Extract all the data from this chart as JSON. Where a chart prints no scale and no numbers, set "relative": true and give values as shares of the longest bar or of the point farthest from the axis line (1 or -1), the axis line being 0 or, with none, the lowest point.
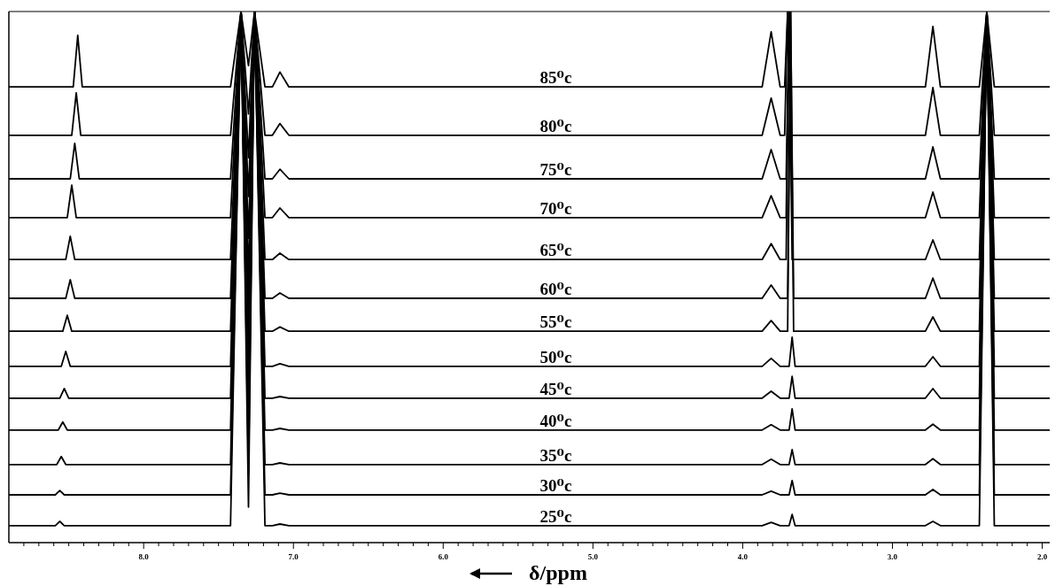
{
  "chart_data": {
    "type": "line",
    "relative": true,
    "xlabel": "δ/ppm",
    "line_style": "solid",
    "xlim": [
      8.9,
      1.95
    ],
    "xticks": [
      {
        "value": 8,
        "label": "8.0"
      },
      {
        "value": 7,
        "label": "7.0"
      },
      {
        "value": 6,
        "label": "6.0"
      },
      {
        "value": 5,
        "label": "5.0"
      },
      {
        "value": 4,
        "label": "4.0"
      },
      {
        "value": 3,
        "label": "3.0"
      },
      {
        "value": 2,
        "label": "2.0"
      },
      {
        "value": 8.8,
        "label": null
      },
      {
        "value": 8.7,
        "label": null
      },
      {
        "value": 8.6,
        "label": null
      },
      {
        "value": 8.5,
        "label": null
      },
      {
        "value": 8.4,
        "label": null
      },
      {
        "value": 8.3,
        "label": null
      },
      {
        "value": 8.2,
        "label": null
      },
      {
        "value": 8.1,
        "label": null
      },
      {
        "value": 7.9,
        "label": null
      },
      {
        "value": 7.8,
        "label": null
      },
      {
        "value": 7.7,
        "label": null
      },
      {
        "value": 7.6,
        "label": null
      },
      {
        "value": 7.5,
        "label": null
      },
      {
        "value": 7.4,
        "label": null
      },
      {
        "value": 7.3,
        "label": null
      },
      {
        "value": 7.2,
        "label": null
      },
      {
        "value": 7.1,
        "label": null
      },
      {
        "value": 6.9,
        "label": null
      },
      {
        "value": 6.8,
        "label": null
      },
      {
        "value": 6.7,
        "label": null
      },
      {
        "value": 6.6,
        "label": null
      },
      {
        "value": 6.5,
        "label": null
      },
      {
        "value": 6.4,
        "label": null
      },
      {
        "value": 6.3,
        "label": null
      },
      {
        "value": 6.2,
        "label": null
      },
      {
        "value": 6.1,
        "label": null
      },
      {
        "value": 5.9,
        "label": null
      },
      {
        "value": 5.8,
        "label": null
      },
      {
        "value": 5.7,
        "label": null
      },
      {
        "value": 5.6,
        "label": null
      },
      {
        "value": 5.5,
        "label": null
      },
      {
        "value": 5.4,
        "label": null
      },
      {
        "value": 5.3,
        "label": null
      },
      {
        "value": 5.2,
        "label": null
      },
      {
        "value": 5.1,
        "label": null
      },
      {
        "value": 4.9,
        "label": null
      },
      {
        "value": 4.8,
        "label": null
      },
      {
        "value": 4.7,
        "label": null
      },
      {
        "value": 4.6,
        "label": null
      },
      {
        "value": 4.5,
        "label": null
      },
      {
        "value": 4.4,
        "label": null
      },
      {
        "value": 4.3,
        "label": null
      },
      {
        "value": 4.2,
        "label": null
      },
      {
        "value": 4.1,
        "label": null
      },
      {
        "value": 3.9,
        "label": null
      },
      {
        "value": 3.8,
        "label": null
      },
      {
        "value": 3.7,
        "label": null
      },
      {
        "value": 3.6,
        "label": null
      },
      {
        "value": 3.5,
        "label": null
      },
      {
        "value": 3.4,
        "label": null
      },
      {
        "value": 3.3,
        "label": null
      },
      {
        "value": 3.2,
        "label": null
      },
      {
        "value": 3.1,
        "label": null
      },
      {
        "value": 2.9,
        "label": null
      },
      {
        "value": 2.8,
        "label": null
      },
      {
        "value": 2.7,
        "label": null
      },
      {
        "value": 2.6,
        "label": null
      },
      {
        "value": 2.5,
        "label": null
      },
      {
        "value": 2.4,
        "label": null
      },
      {
        "value": 2.3,
        "label": null
      },
      {
        "value": 2.2,
        "label": null
      },
      {
        "value": 2.1,
        "label": null
      }
    ],
    "series": [
      {
        "name": "85⁰c",
        "color": "#000000",
        "x": [
          8.9,
          8.47,
          8.44,
          8.41,
          7.42,
          7.35,
          7.3,
          7.26,
          7.19,
          7.14,
          7.09,
          7.03,
          3.87,
          3.81,
          3.75,
          3.72,
          3.7,
          3.68,
          2.78,
          2.73,
          2.68,
          2.42,
          2.37,
          2.32,
          1.95
        ],
        "values": [
          0.858,
          0.858,
          0.955,
          0.858,
          0.858,
          1,
          0.898,
          1,
          0.858,
          0.858,
          0.886,
          0.858,
          0.858,
          0.962,
          0.858,
          0.858,
          1,
          0.858,
          0.858,
          0.972,
          0.858,
          0.858,
          1,
          0.858,
          0.858
        ]
      },
      {
        "name": "80⁰c",
        "color": "#000000",
        "x": [
          8.9,
          8.48,
          8.45,
          8.42,
          7.42,
          7.35,
          7.3,
          7.26,
          7.19,
          7.14,
          7.09,
          7.03,
          3.87,
          3.81,
          3.75,
          3.72,
          3.7,
          3.68,
          2.78,
          2.73,
          2.68,
          2.42,
          2.37,
          2.32,
          1.95
        ],
        "values": [
          0.767,
          0.767,
          0.847,
          0.767,
          0.767,
          1,
          0.807,
          1,
          0.767,
          0.767,
          0.789,
          0.767,
          0.767,
          0.837,
          0.767,
          0.767,
          1,
          0.767,
          0.767,
          0.857,
          0.767,
          0.767,
          1,
          0.767,
          0.767
        ]
      },
      {
        "name": "75⁰c",
        "color": "#000000",
        "x": [
          8.9,
          8.49,
          8.46,
          8.43,
          7.42,
          7.35,
          7.3,
          7.26,
          7.19,
          7.14,
          7.09,
          7.03,
          3.87,
          3.81,
          3.75,
          3.71,
          3.69,
          3.67,
          2.78,
          2.73,
          2.68,
          2.42,
          2.37,
          2.32,
          1.95
        ],
        "values": [
          0.685,
          0.685,
          0.752,
          0.685,
          0.685,
          1,
          0.725,
          1,
          0.685,
          0.685,
          0.703,
          0.685,
          0.685,
          0.74,
          0.685,
          0.685,
          1,
          0.685,
          0.685,
          0.745,
          0.685,
          0.685,
          1,
          0.685,
          0.685
        ]
      },
      {
        "name": "70⁰c",
        "color": "#000000",
        "x": [
          8.9,
          8.51,
          8.48,
          8.45,
          7.42,
          7.35,
          7.3,
          7.26,
          7.19,
          7.14,
          7.09,
          7.03,
          3.87,
          3.81,
          3.75,
          3.71,
          3.69,
          3.67,
          2.78,
          2.73,
          2.68,
          2.42,
          2.37,
          2.32,
          1.95
        ],
        "values": [
          0.612,
          0.612,
          0.673,
          0.612,
          0.612,
          1,
          0.652,
          1,
          0.612,
          0.612,
          0.63,
          0.612,
          0.612,
          0.653,
          0.612,
          0.612,
          1,
          0.612,
          0.612,
          0.66,
          0.612,
          0.612,
          1,
          0.612,
          0.612
        ]
      },
      {
        "name": "65⁰c",
        "color": "#000000",
        "x": [
          8.9,
          8.52,
          8.49,
          8.46,
          7.42,
          7.35,
          7.3,
          7.26,
          7.19,
          7.14,
          7.09,
          7.03,
          3.87,
          3.81,
          3.75,
          3.71,
          3.69,
          3.67,
          2.78,
          2.73,
          2.68,
          2.42,
          2.37,
          2.32,
          1.95
        ],
        "values": [
          0.533,
          0.533,
          0.577,
          0.533,
          0.533,
          1,
          0.573,
          1,
          0.533,
          0.533,
          0.545,
          0.533,
          0.533,
          0.563,
          0.533,
          0.533,
          1,
          0.533,
          0.533,
          0.57,
          0.533,
          0.533,
          1,
          0.533,
          0.533
        ]
      },
      {
        "name": "60⁰c",
        "color": "#000000",
        "x": [
          8.9,
          8.52,
          8.49,
          8.46,
          7.42,
          7.35,
          7.3,
          7.26,
          7.19,
          7.14,
          7.09,
          7.03,
          3.87,
          3.81,
          3.75,
          3.7,
          3.68,
          3.66,
          2.78,
          2.73,
          2.68,
          2.42,
          2.37,
          2.32,
          1.95
        ],
        "values": [
          0.46,
          0.46,
          0.495,
          0.46,
          0.46,
          1,
          0.5,
          1,
          0.46,
          0.46,
          0.47,
          0.46,
          0.46,
          0.485,
          0.46,
          0.46,
          1,
          0.46,
          0.46,
          0.498,
          0.46,
          0.46,
          1,
          0.46,
          0.46
        ]
      },
      {
        "name": "55⁰c",
        "color": "#000000",
        "x": [
          8.9,
          8.54,
          8.51,
          8.48,
          7.42,
          7.35,
          7.3,
          7.26,
          7.19,
          7.14,
          7.09,
          7.03,
          3.87,
          3.81,
          3.75,
          3.7,
          3.68,
          3.66,
          2.78,
          2.73,
          2.68,
          2.42,
          2.37,
          2.32,
          1.95
        ],
        "values": [
          0.398,
          0.398,
          0.428,
          0.398,
          0.398,
          1,
          0.438,
          1,
          0.398,
          0.398,
          0.406,
          0.398,
          0.398,
          0.418,
          0.398,
          0.398,
          1,
          0.398,
          0.398,
          0.425,
          0.398,
          0.398,
          1,
          0.398,
          0.398
        ]
      },
      {
        "name": "50⁰c",
        "color": "#000000",
        "x": [
          8.9,
          8.55,
          8.52,
          8.49,
          7.42,
          7.35,
          7.3,
          7.26,
          7.19,
          7.14,
          7.09,
          7.03,
          3.87,
          3.81,
          3.75,
          3.69,
          3.67,
          3.65,
          2.78,
          2.73,
          2.68,
          2.42,
          2.37,
          2.32,
          1.95
        ],
        "values": [
          0.332,
          0.332,
          0.36,
          0.332,
          0.332,
          1,
          0.372,
          1,
          0.332,
          0.332,
          0.337,
          0.332,
          0.332,
          0.347,
          0.332,
          0.332,
          0.387,
          0.332,
          0.332,
          0.35,
          0.332,
          0.332,
          1,
          0.332,
          0.332
        ]
      },
      {
        "name": "45⁰c",
        "color": "#000000",
        "x": [
          8.9,
          8.56,
          8.53,
          8.5,
          7.42,
          7.35,
          7.3,
          7.26,
          7.19,
          7.14,
          7.09,
          7.03,
          3.87,
          3.81,
          3.75,
          3.69,
          3.67,
          3.65,
          2.78,
          2.73,
          2.68,
          2.42,
          2.37,
          2.32,
          1.95
        ],
        "values": [
          0.272,
          0.272,
          0.29,
          0.272,
          0.272,
          1,
          0.312,
          1,
          0.272,
          0.272,
          0.275,
          0.272,
          0.272,
          0.285,
          0.272,
          0.272,
          0.313,
          0.272,
          0.272,
          0.29,
          0.272,
          0.272,
          1,
          0.272,
          0.272
        ]
      },
      {
        "name": "40⁰c",
        "color": "#000000",
        "x": [
          8.9,
          8.57,
          8.54,
          8.51,
          7.42,
          7.35,
          7.3,
          7.26,
          7.19,
          7.14,
          7.09,
          7.03,
          3.87,
          3.81,
          3.75,
          3.69,
          3.67,
          3.65,
          2.78,
          2.73,
          2.68,
          2.42,
          2.37,
          2.32,
          1.95
        ],
        "values": [
          0.212,
          0.212,
          0.227,
          0.212,
          0.212,
          1,
          0.252,
          1,
          0.212,
          0.212,
          0.215,
          0.212,
          0.212,
          0.222,
          0.212,
          0.212,
          0.252,
          0.212,
          0.212,
          0.223,
          0.212,
          0.212,
          1,
          0.212,
          0.212
        ]
      },
      {
        "name": "35⁰c",
        "color": "#000000",
        "x": [
          8.9,
          8.58,
          8.55,
          8.52,
          7.42,
          7.35,
          7.3,
          7.26,
          7.19,
          7.14,
          7.09,
          7.03,
          3.87,
          3.81,
          3.75,
          3.69,
          3.67,
          3.65,
          2.78,
          2.73,
          2.68,
          2.42,
          2.37,
          2.32,
          1.95
        ],
        "values": [
          0.147,
          0.147,
          0.162,
          0.147,
          0.147,
          1,
          0.187,
          1,
          0.147,
          0.147,
          0.15,
          0.147,
          0.147,
          0.157,
          0.147,
          0.147,
          0.175,
          0.147,
          0.147,
          0.158,
          0.147,
          0.147,
          1,
          0.147,
          0.147
        ]
      },
      {
        "name": "30⁰c",
        "color": "#000000",
        "x": [
          8.9,
          8.59,
          8.56,
          8.53,
          7.42,
          7.35,
          7.3,
          7.26,
          7.19,
          7.14,
          7.09,
          7.03,
          3.87,
          3.81,
          3.75,
          3.69,
          3.67,
          3.65,
          2.78,
          2.73,
          2.68,
          2.42,
          2.37,
          2.32,
          1.95
        ],
        "values": [
          0.09,
          0.09,
          0.098,
          0.09,
          0.09,
          1,
          0.13,
          1,
          0.09,
          0.09,
          0.093,
          0.09,
          0.09,
          0.097,
          0.09,
          0.09,
          0.117,
          0.09,
          0.09,
          0.1,
          0.09,
          0.09,
          1,
          0.09,
          0.09
        ]
      },
      {
        "name": "25⁰c",
        "color": "#000000",
        "x": [
          8.9,
          8.59,
          8.56,
          8.53,
          7.42,
          7.35,
          7.3,
          7.26,
          7.19,
          7.14,
          7.09,
          7.03,
          3.87,
          3.81,
          3.75,
          3.69,
          3.67,
          3.65,
          2.78,
          2.73,
          2.68,
          2.42,
          2.37,
          2.32,
          1.95
        ],
        "values": [
          0.032,
          0.032,
          0.04,
          0.032,
          0.032,
          1,
          0.067,
          1,
          0.032,
          0.032,
          0.035,
          0.032,
          0.032,
          0.038,
          0.032,
          0.032,
          0.053,
          0.032,
          0.032,
          0.04,
          0.032,
          0.032,
          1,
          0.032,
          0.032
        ]
      }
    ]
  }
}
